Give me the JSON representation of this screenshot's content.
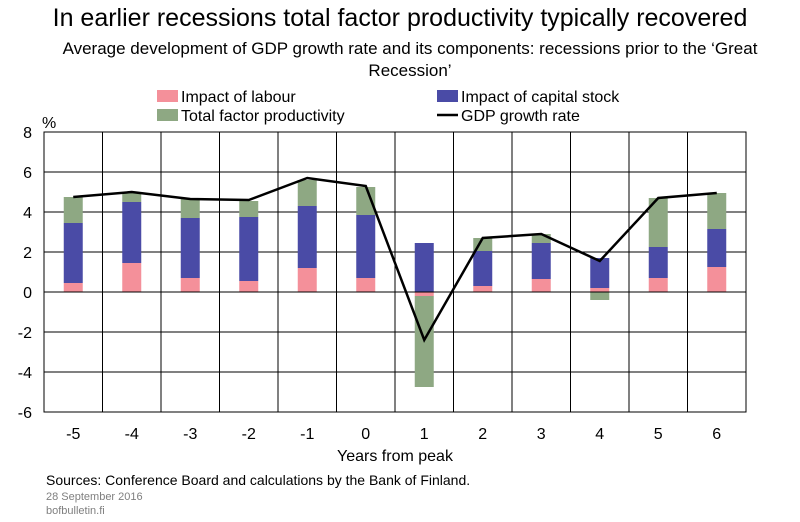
{
  "chart_data": {
    "type": "bar",
    "title": "In earlier recessions total factor productivity typically recovered",
    "subtitle": "Average development of GDP growth rate and its components: recessions prior to the ‘Great Recession’",
    "xlabel": "Years from peak",
    "ylabel": "%",
    "ylim": [
      -6,
      8
    ],
    "yticks": [
      "-6",
      "-4",
      "-2",
      "0",
      "2",
      "4",
      "6",
      "8"
    ],
    "categories": [
      "-5",
      "-4",
      "-3",
      "-2",
      "-1",
      "0",
      "1",
      "2",
      "3",
      "4",
      "5",
      "6"
    ],
    "stacked": true,
    "series": [
      {
        "name": "Impact of labour",
        "kind": "bar",
        "color": "#f4909a",
        "values": [
          0.45,
          1.45,
          0.7,
          0.55,
          1.2,
          0.7,
          -0.2,
          0.3,
          0.65,
          0.2,
          0.7,
          1.25
        ]
      },
      {
        "name": "Impact of capital stock",
        "kind": "bar",
        "color": "#4a4ba6",
        "values": [
          3.0,
          3.05,
          3.0,
          3.2,
          3.1,
          3.15,
          2.45,
          1.75,
          1.8,
          1.5,
          1.55,
          1.9
        ]
      },
      {
        "name": "Total factor productivity",
        "kind": "bar",
        "color": "#8ea883",
        "values": [
          1.3,
          0.45,
          0.95,
          0.8,
          1.3,
          1.4,
          -4.55,
          0.65,
          0.45,
          -0.4,
          2.45,
          1.8
        ]
      },
      {
        "name": "GDP growth rate",
        "kind": "line",
        "color": "#000000",
        "values": [
          4.75,
          5.0,
          4.65,
          4.6,
          5.7,
          5.3,
          -2.4,
          2.7,
          2.9,
          1.55,
          4.7,
          4.95
        ]
      }
    ],
    "legend_position": "top"
  },
  "footer": {
    "sources": "Sources: Conference Board and calculations by the Bank of Finland.",
    "date": "28 September 2016",
    "site": "bofbulletin.fi"
  }
}
